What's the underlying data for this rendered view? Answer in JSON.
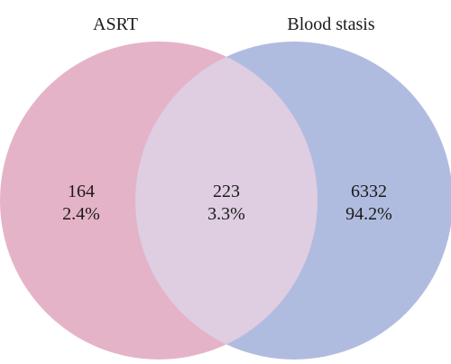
{
  "sets": [
    {
      "name": "ASRT",
      "color": "#e5b3c7"
    },
    {
      "name": "Blood stasis",
      "color": "#b0bcdf"
    }
  ],
  "overlap_color": "#dfcde2",
  "regions": {
    "left": {
      "count": "164",
      "percent": "2.4%"
    },
    "overlap": {
      "count": "223",
      "percent": "3.3%"
    },
    "right": {
      "count": "6332",
      "percent": "94.2%"
    }
  }
}
